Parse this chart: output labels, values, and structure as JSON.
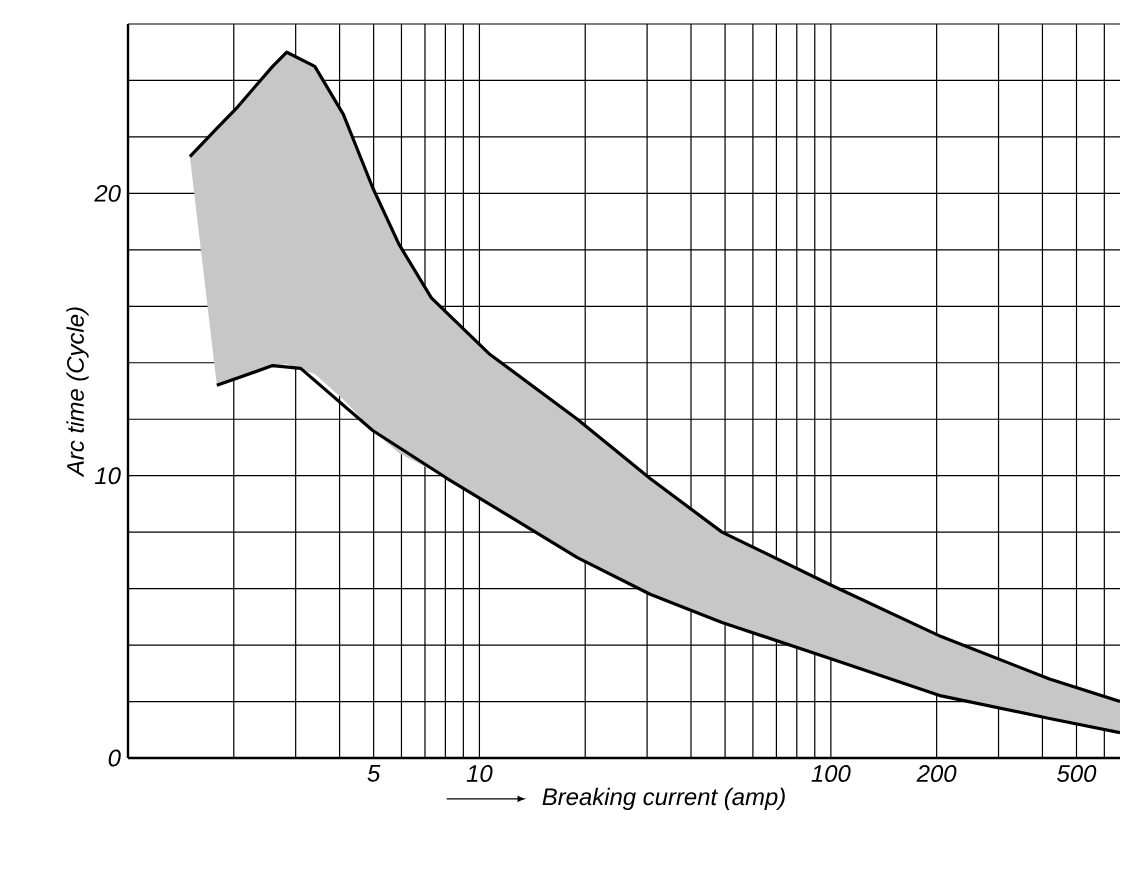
{
  "chart_data": {
    "type": "line",
    "xlabel": "Breaking current (amp)",
    "ylabel": "Arc time (Cycle)",
    "log": "x",
    "grid": true,
    "xlim": [
      1,
      665
    ],
    "ylim": [
      0,
      26
    ],
    "xticks": [
      {
        "value": 2,
        "label": null
      },
      {
        "value": 3,
        "label": null
      },
      {
        "value": 4,
        "label": null
      },
      5,
      {
        "value": 6,
        "label": null
      },
      {
        "value": 7,
        "label": null
      },
      {
        "value": 8,
        "label": null
      },
      {
        "value": 9,
        "label": null
      },
      10,
      {
        "value": 20,
        "label": null
      },
      {
        "value": 30,
        "label": null
      },
      {
        "value": 40,
        "label": null
      },
      {
        "value": 50,
        "label": null
      },
      {
        "value": 60,
        "label": null
      },
      {
        "value": 70,
        "label": null
      },
      {
        "value": 80,
        "label": null
      },
      {
        "value": 90,
        "label": null
      },
      100,
      200,
      {
        "value": 300,
        "label": null
      },
      {
        "value": 400,
        "label": null
      },
      500,
      {
        "value": 600,
        "label": null
      }
    ],
    "yticks": [
      0,
      {
        "value": 2,
        "label": null
      },
      {
        "value": 4,
        "label": null
      },
      {
        "value": 6,
        "label": null
      },
      {
        "value": 8,
        "label": null
      },
      10,
      {
        "value": 12,
        "label": null
      },
      {
        "value": 14,
        "label": null
      },
      {
        "value": 16,
        "label": null
      },
      {
        "value": 18,
        "label": null
      },
      20,
      {
        "value": 22,
        "label": null
      },
      {
        "value": 24,
        "label": null
      },
      {
        "value": 26,
        "label": null
      }
    ],
    "series": [
      {
        "color": "#000000",
        "x": [
          1.5,
          1.79,
          2.03,
          2.58,
          2.83,
          3.4,
          4.1,
          4.97,
          5.9,
          7.3,
          10.7,
          19,
          30.6,
          49,
          101,
          206,
          419,
          665
        ],
        "values": [
          21.3,
          22.3,
          23.0,
          24.5,
          25.0,
          24.5,
          22.8,
          20.2,
          18.2,
          16.3,
          14.3,
          12.0,
          9.9,
          8.0,
          6.1,
          4.3,
          2.8,
          2.0
        ],
        "upper": [
          21.3,
          22.3,
          23.0,
          24.5,
          25.0,
          24.5,
          22.8,
          20.2,
          18.2,
          16.3,
          14.3,
          12.0,
          9.9,
          8.0,
          6.1,
          4.3,
          2.8,
          2.0
        ],
        "lower": [
          21.3,
          13.2,
          13.5,
          13.9,
          13.95,
          13.6,
          12.7,
          11.6,
          10.8,
          10.2,
          9.0,
          7.1,
          5.8,
          4.8,
          3.5,
          2.2,
          1.4,
          0.9
        ]
      },
      {
        "color": "#000000",
        "x": [
          1.79,
          2.58,
          3.1,
          4.97,
          8.1,
          19,
          30.6,
          49,
          101,
          206,
          419,
          665
        ],
        "values": [
          13.2,
          13.9,
          13.8,
          11.6,
          9.9,
          7.1,
          5.8,
          4.8,
          3.5,
          2.2,
          1.4,
          0.9
        ]
      }
    ]
  }
}
